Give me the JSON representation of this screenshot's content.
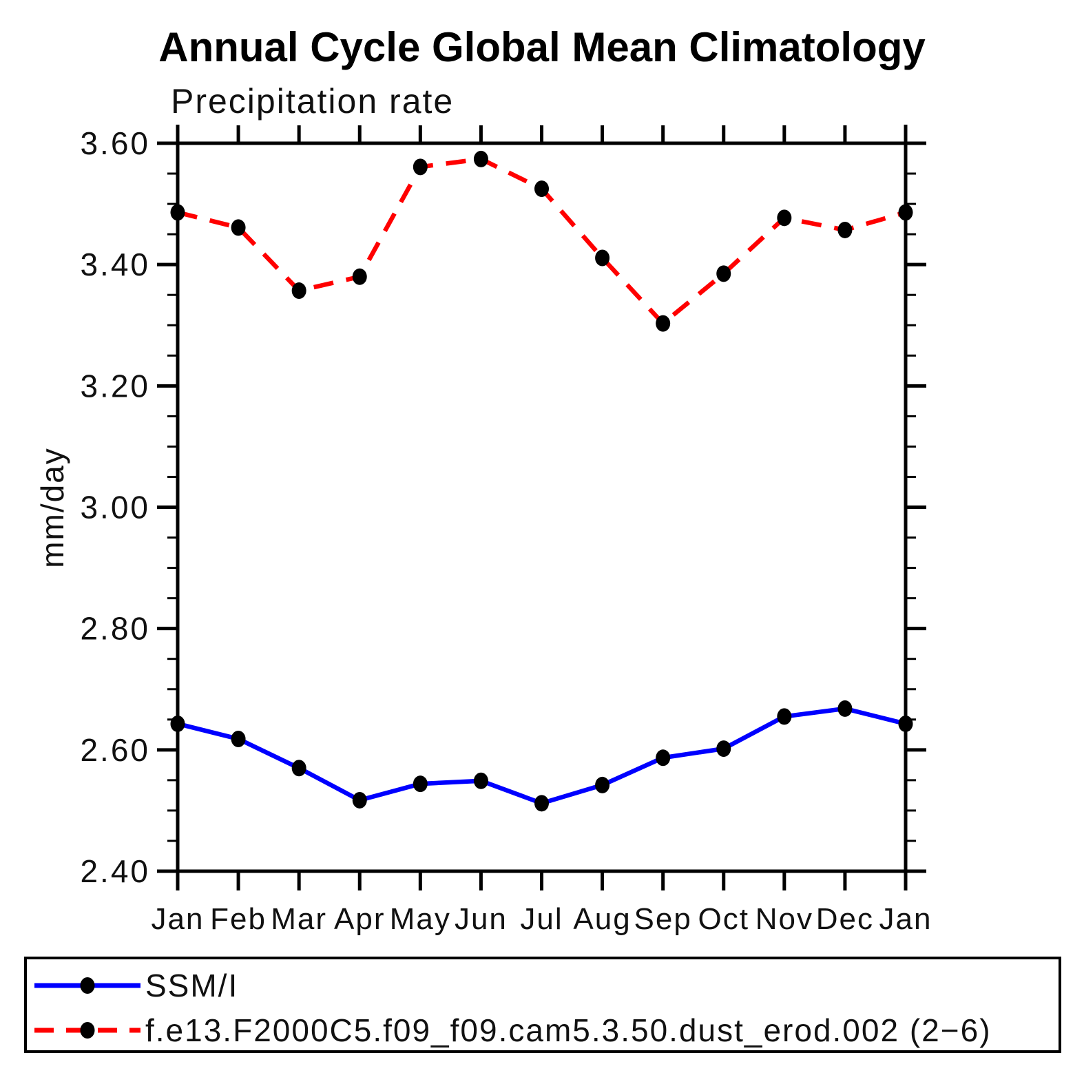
{
  "header": {
    "title": "Annual Cycle Global Mean Climatology",
    "subtitle": "Precipitation rate"
  },
  "axes": {
    "ylabel": "mm/day",
    "ytick_labels": [
      "2.40",
      "2.60",
      "2.80",
      "3.00",
      "3.20",
      "3.40",
      "3.60"
    ],
    "xtick_labels": [
      "Jan",
      "Feb",
      "Mar",
      "Apr",
      "May",
      "Jun",
      "Jul",
      "Aug",
      "Sep",
      "Oct",
      "Nov",
      "Dec",
      "Jan"
    ]
  },
  "legend": {
    "items": [
      {
        "label": "SSM/I",
        "color": "#0000ff",
        "line_style": "solid",
        "marker": "filled-circle"
      },
      {
        "label": "f.e13.F2000C5.f09_f09.cam5.3.50.dust_erod.002 (2−6)",
        "color": "#ff0000",
        "line_style": "dashed",
        "marker": "filled-circle"
      }
    ]
  },
  "colors": {
    "series1": "#0000ff",
    "series2": "#ff0000",
    "marker": "#000000",
    "axis": "#000000",
    "background": "#ffffff"
  },
  "chart_data": {
    "type": "line",
    "title": "Annual Cycle Global Mean Climatology",
    "subtitle": "Precipitation rate",
    "xlabel": "",
    "ylabel": "mm/day",
    "categories": [
      "Jan",
      "Feb",
      "Mar",
      "Apr",
      "May",
      "Jun",
      "Jul",
      "Aug",
      "Sep",
      "Oct",
      "Nov",
      "Dec",
      "Jan"
    ],
    "ylim": [
      2.4,
      3.6
    ],
    "ytick_major_step": 0.2,
    "ytick_minor_step": 0.05,
    "grid": false,
    "legend_position": "bottom",
    "series": [
      {
        "name": "SSM/I",
        "color": "#0000ff",
        "line_style": "solid",
        "marker": "filled-circle",
        "marker_color": "#000000",
        "values": [
          2.643,
          2.618,
          2.57,
          2.517,
          2.544,
          2.549,
          2.512,
          2.542,
          2.587,
          2.602,
          2.655,
          2.668,
          2.643
        ]
      },
      {
        "name": "f.e13.F2000C5.f09_f09.cam5.3.50.dust_erod.002 (2−6)",
        "color": "#ff0000",
        "line_style": "dashed",
        "marker": "filled-circle",
        "marker_color": "#000000",
        "values": [
          3.486,
          3.461,
          3.357,
          3.38,
          3.561,
          3.574,
          3.525,
          3.411,
          3.303,
          3.385,
          3.477,
          3.457,
          3.486
        ]
      }
    ]
  }
}
